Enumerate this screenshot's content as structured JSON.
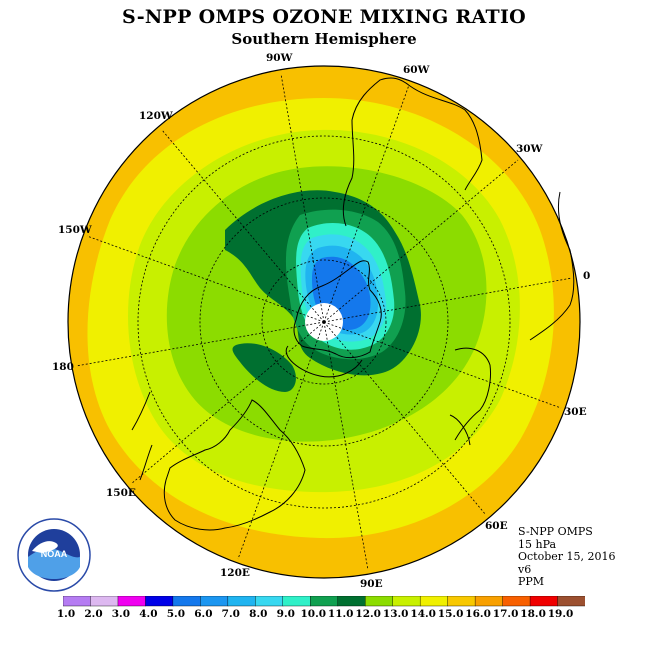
{
  "title": "S-NPP OMPS OZONE MIXING RATIO",
  "subtitle": "Southern Hemisphere",
  "longitude_labels": [
    {
      "name": "lon-label-90w",
      "text": "90W"
    },
    {
      "name": "lon-label-60w",
      "text": "60W"
    },
    {
      "name": "lon-label-30w",
      "text": "30W"
    },
    {
      "name": "lon-label-0",
      "text": "0"
    },
    {
      "name": "lon-label-30e",
      "text": "30E"
    },
    {
      "name": "lon-label-60e",
      "text": "60E"
    },
    {
      "name": "lon-label-90e",
      "text": "90E"
    },
    {
      "name": "lon-label-120e",
      "text": "120E"
    },
    {
      "name": "lon-label-150e",
      "text": "150E"
    },
    {
      "name": "lon-label-180",
      "text": "180"
    },
    {
      "name": "lon-label-150w",
      "text": "150W"
    },
    {
      "name": "lon-label-120w",
      "text": "120W"
    }
  ],
  "info": {
    "instrument": "S-NPP OMPS",
    "pressure_level": "15 hPa",
    "date": "October 15, 2016",
    "version": "v6",
    "units": "PPM"
  },
  "colorbar": {
    "ticks": [
      "1.0",
      "2.0",
      "3.0",
      "4.0",
      "5.0",
      "6.0",
      "7.0",
      "8.0",
      "9.0",
      "10.0",
      "11.0",
      "12.0",
      "13.0",
      "14.0",
      "15.0",
      "16.0",
      "17.0",
      "18.0",
      "19.0"
    ],
    "colors": [
      "#b57cf2",
      "#ddb8f0",
      "#f000f0",
      "#0000e8",
      "#1478ec",
      "#1c96f0",
      "#20b4f0",
      "#38d8f0",
      "#30f0c8",
      "#10a050",
      "#007030",
      "#8cdc00",
      "#c8f000",
      "#f0f000",
      "#f8c800",
      "#f8a000",
      "#f86000",
      "#f00000",
      "#9c5030"
    ]
  },
  "logo": {
    "text": "NOAA",
    "icon": "noaa-logo-icon"
  }
}
